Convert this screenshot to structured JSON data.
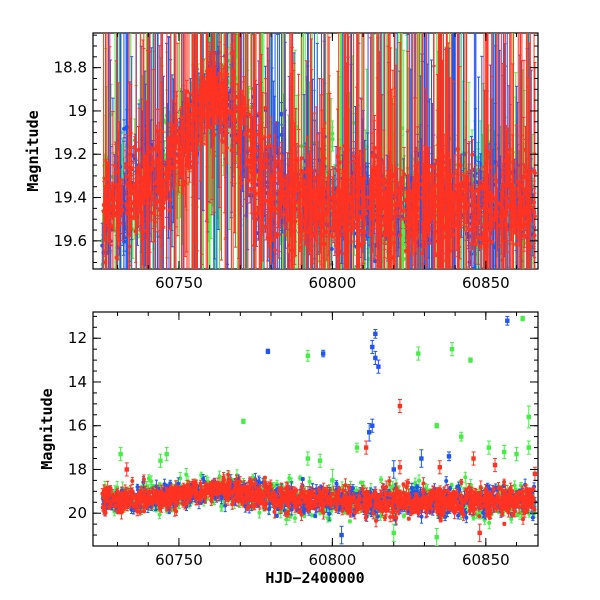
{
  "chart_data": [
    {
      "type": "scatter",
      "title": "",
      "xlabel": "",
      "ylabel": "Magnitude",
      "xlim": [
        60722,
        60867
      ],
      "ylim": [
        19.73,
        18.64
      ],
      "y_inverted": true,
      "xticks": [
        60750,
        60800,
        60850
      ],
      "yticks": [
        18.8,
        19,
        19.2,
        19.4,
        19.6
      ],
      "ytick_labels": [
        "18.8",
        "19",
        "19.2",
        "19.4",
        "19.6"
      ],
      "xtick_labels": [
        "60750",
        "60800",
        "60850"
      ],
      "grid": false,
      "legend": "none",
      "colors": [
        "#2255ee",
        "#44ee44",
        "#ff3322"
      ],
      "series_trend": {
        "x": [
          60725,
          60735,
          60745,
          60752,
          60757,
          60762,
          60766,
          60772,
          60780,
          60790,
          60800,
          60810,
          60820,
          60830,
          60840,
          60850,
          60860,
          60866
        ],
        "y": [
          19.45,
          19.38,
          19.28,
          19.12,
          18.98,
          18.9,
          18.98,
          19.18,
          19.35,
          19.4,
          19.42,
          19.42,
          19.44,
          19.42,
          19.42,
          19.44,
          19.42,
          19.45
        ],
        "spread": [
          0.12,
          0.12,
          0.1,
          0.08,
          0.08,
          0.08,
          0.1,
          0.12,
          0.12,
          0.1,
          0.1,
          0.1,
          0.1,
          0.1,
          0.1,
          0.1,
          0.1,
          0.1
        ]
      }
    },
    {
      "type": "scatter",
      "title": "",
      "xlabel": "HJD−2400000",
      "ylabel": "Magnitude",
      "xlim": [
        60722,
        60867
      ],
      "ylim": [
        21.5,
        10.8
      ],
      "y_inverted": true,
      "xticks": [
        60750,
        60800,
        60850
      ],
      "yticks": [
        12,
        14,
        16,
        18,
        20
      ],
      "ytick_labels": [
        "12",
        "14",
        "16",
        "18",
        "20"
      ],
      "xtick_labels": [
        "60750",
        "60800",
        "60850"
      ],
      "grid": false,
      "legend": "none",
      "colors": [
        "#2255ee",
        "#44ee44",
        "#ff3322"
      ],
      "series_trend": {
        "x": [
          60725,
          60740,
          60752,
          60760,
          60766,
          60775,
          60790,
          60800,
          60820,
          60840,
          60866
        ],
        "y": [
          19.45,
          19.35,
          19.15,
          18.95,
          19.0,
          19.2,
          19.4,
          19.42,
          19.45,
          19.45,
          19.45
        ],
        "spread": [
          0.3,
          0.3,
          0.25,
          0.2,
          0.25,
          0.3,
          0.3,
          0.3,
          0.3,
          0.3,
          0.3
        ]
      },
      "outliers": [
        {
          "x": 60779,
          "y": 12.6,
          "err": 0.1,
          "color": "#2255ee"
        },
        {
          "x": 60792,
          "y": 12.8,
          "err": 0.25,
          "color": "#44ee44"
        },
        {
          "x": 60797,
          "y": 12.7,
          "err": 0.15,
          "color": "#2255ee"
        },
        {
          "x": 60813,
          "y": 12.4,
          "err": 0.3,
          "color": "#2255ee"
        },
        {
          "x": 60814,
          "y": 12.9,
          "err": 0.3,
          "color": "#2255ee"
        },
        {
          "x": 60815,
          "y": 13.3,
          "err": 0.3,
          "color": "#2255ee"
        },
        {
          "x": 60814,
          "y": 11.8,
          "err": 0.2,
          "color": "#2255ee"
        },
        {
          "x": 60828,
          "y": 12.7,
          "err": 0.3,
          "color": "#44ee44"
        },
        {
          "x": 60839,
          "y": 12.5,
          "err": 0.3,
          "color": "#44ee44"
        },
        {
          "x": 60845,
          "y": 13.0,
          "err": 0.1,
          "color": "#44ee44"
        },
        {
          "x": 60857,
          "y": 11.2,
          "err": 0.2,
          "color": "#2255ee"
        },
        {
          "x": 60862,
          "y": 11.1,
          "err": 0.1,
          "color": "#44ee44"
        },
        {
          "x": 60864,
          "y": 15.6,
          "err": 0.5,
          "color": "#44ee44"
        },
        {
          "x": 60822,
          "y": 15.1,
          "err": 0.3,
          "color": "#ff3322"
        },
        {
          "x": 60812,
          "y": 16.3,
          "err": 0.4,
          "color": "#2255ee"
        },
        {
          "x": 60813,
          "y": 16.0,
          "err": 0.3,
          "color": "#2255ee"
        },
        {
          "x": 60811,
          "y": 17.0,
          "err": 0.3,
          "color": "#ff3322"
        },
        {
          "x": 60771,
          "y": 15.8,
          "err": 0.1,
          "color": "#44ee44"
        },
        {
          "x": 60834,
          "y": 16.0,
          "err": 0.1,
          "color": "#44ee44"
        },
        {
          "x": 60842,
          "y": 16.5,
          "err": 0.2,
          "color": "#44ee44"
        },
        {
          "x": 60733,
          "y": 18.0,
          "err": 0.3,
          "color": "#ff3322"
        },
        {
          "x": 60731,
          "y": 17.3,
          "err": 0.3,
          "color": "#44ee44"
        },
        {
          "x": 60744,
          "y": 17.6,
          "err": 0.3,
          "color": "#44ee44"
        },
        {
          "x": 60746,
          "y": 17.3,
          "err": 0.3,
          "color": "#44ee44"
        },
        {
          "x": 60792,
          "y": 17.5,
          "err": 0.3,
          "color": "#44ee44"
        },
        {
          "x": 60796,
          "y": 17.6,
          "err": 0.3,
          "color": "#44ee44"
        },
        {
          "x": 60808,
          "y": 17.0,
          "err": 0.2,
          "color": "#44ee44"
        },
        {
          "x": 60820,
          "y": 18.0,
          "err": 0.4,
          "color": "#2255ee"
        },
        {
          "x": 60822,
          "y": 17.9,
          "err": 0.3,
          "color": "#ff3322"
        },
        {
          "x": 60829,
          "y": 17.5,
          "err": 0.4,
          "color": "#2255ee"
        },
        {
          "x": 60835,
          "y": 17.9,
          "err": 0.3,
          "color": "#ff3322"
        },
        {
          "x": 60838,
          "y": 17.4,
          "err": 0.2,
          "color": "#2255ee"
        },
        {
          "x": 60846,
          "y": 17.5,
          "err": 0.3,
          "color": "#ff3322"
        },
        {
          "x": 60851,
          "y": 17.0,
          "err": 0.3,
          "color": "#44ee44"
        },
        {
          "x": 60853,
          "y": 17.8,
          "err": 0.3,
          "color": "#ff3322"
        },
        {
          "x": 60856,
          "y": 17.2,
          "err": 0.3,
          "color": "#44ee44"
        },
        {
          "x": 60860,
          "y": 17.3,
          "err": 0.3,
          "color": "#44ee44"
        },
        {
          "x": 60864,
          "y": 17.0,
          "err": 0.3,
          "color": "#44ee44"
        },
        {
          "x": 60866,
          "y": 18.2,
          "err": 0.3,
          "color": "#ff3322"
        },
        {
          "x": 60800,
          "y": 18.5,
          "err": 0.5,
          "color": "#44ee44"
        },
        {
          "x": 60803,
          "y": 21.0,
          "err": 0.4,
          "color": "#2255ee"
        },
        {
          "x": 60820,
          "y": 20.9,
          "err": 0.4,
          "color": "#44ee44"
        },
        {
          "x": 60834,
          "y": 21.1,
          "err": 0.4,
          "color": "#44ee44"
        },
        {
          "x": 60848,
          "y": 20.9,
          "err": 0.4,
          "color": "#ff3322"
        }
      ]
    }
  ]
}
